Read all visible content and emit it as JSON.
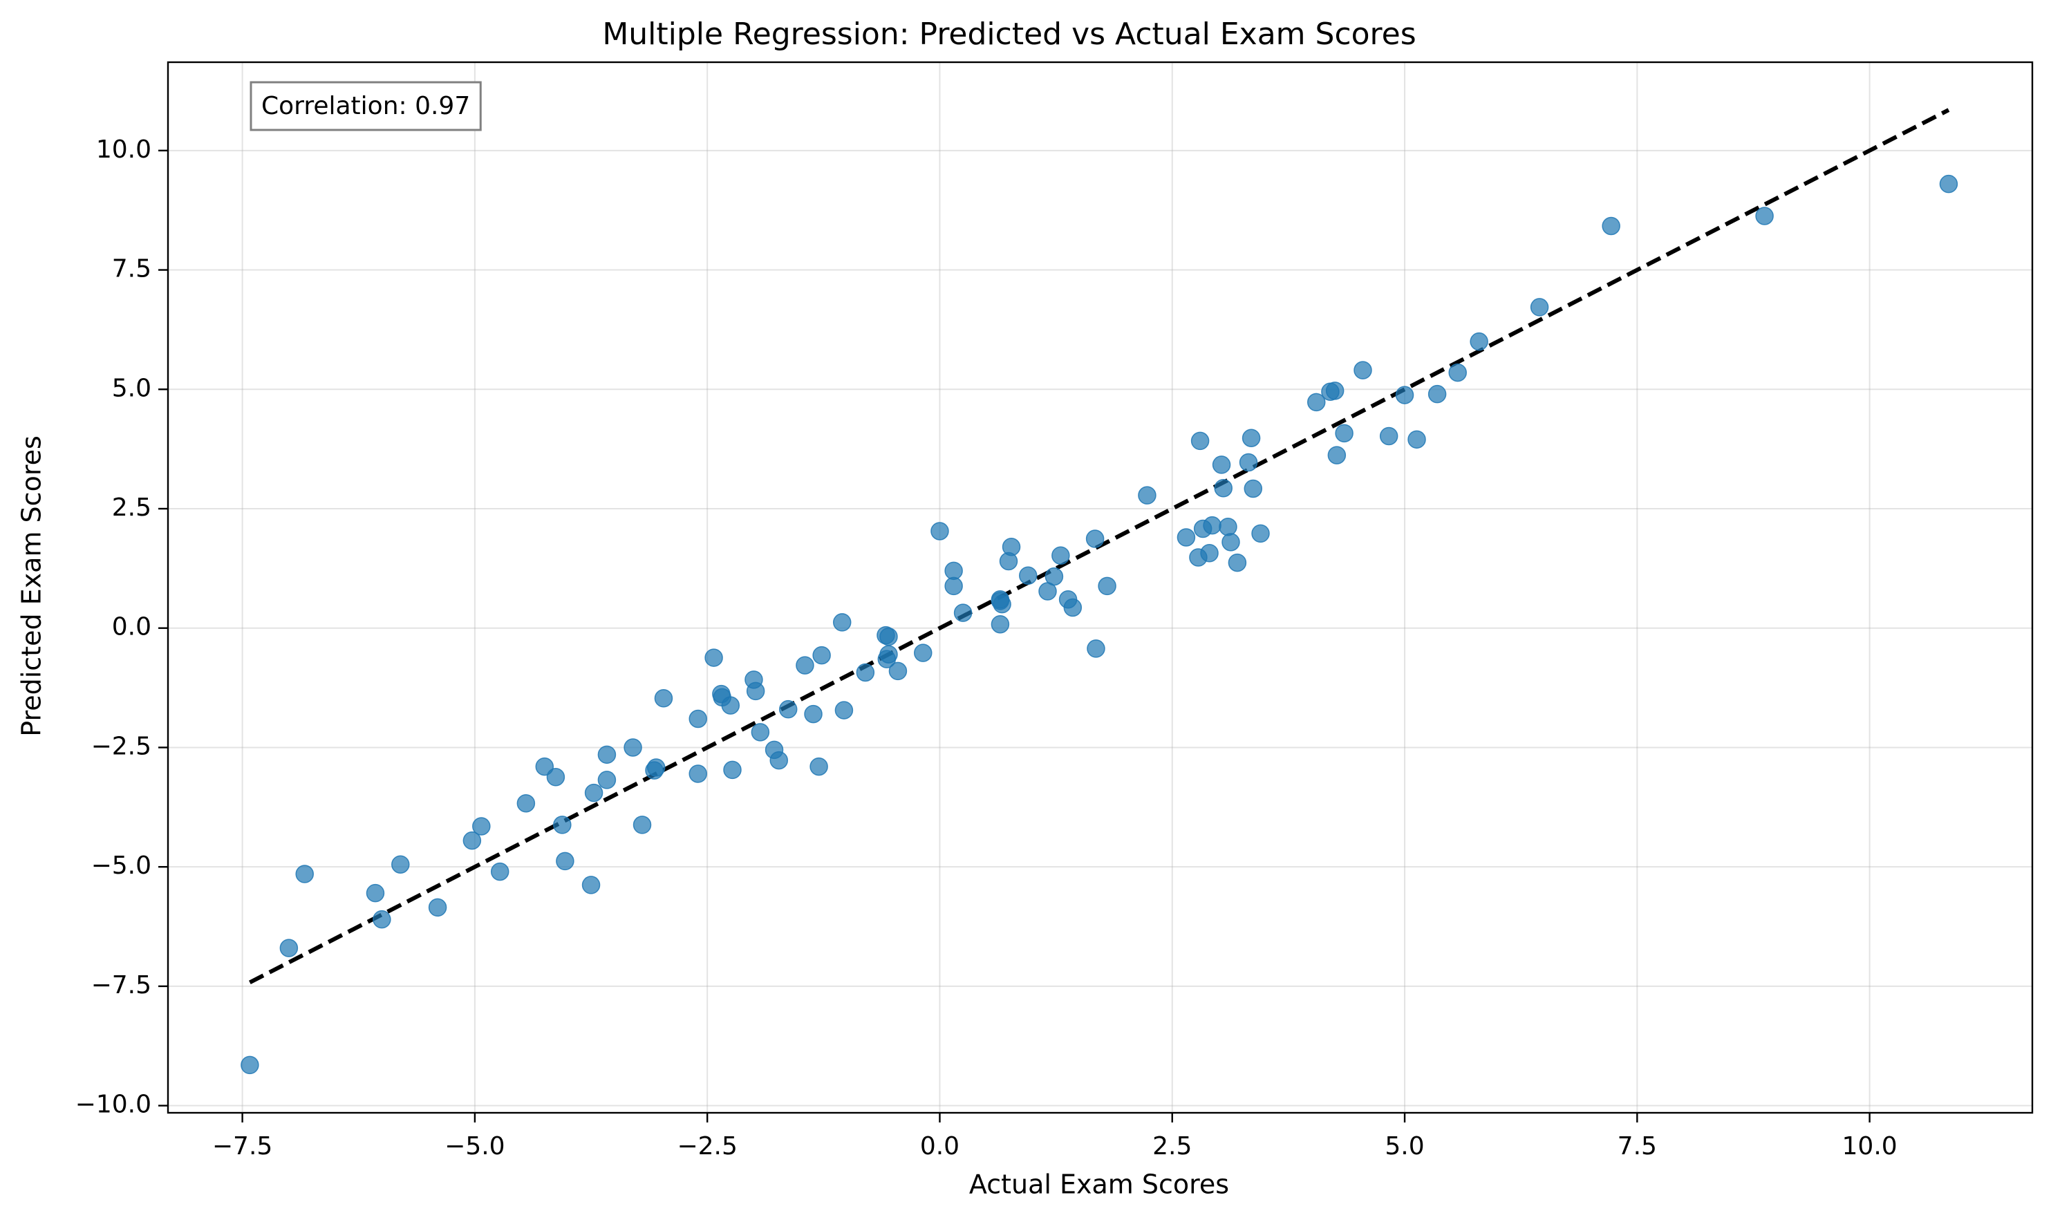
{
  "chart_data": {
    "type": "scatter",
    "title": "Multiple Regression: Predicted vs Actual Exam Scores",
    "xlabel": "Actual Exam Scores",
    "ylabel": "Predicted Exam Scores",
    "xlim": [
      -8.3,
      11.75
    ],
    "ylim": [
      -10.15,
      11.85
    ],
    "xticks": [
      -7.5,
      -5.0,
      -2.5,
      0.0,
      2.5,
      5.0,
      7.5,
      10.0
    ],
    "yticks": [
      -10.0,
      -7.5,
      -5.0,
      -2.5,
      0.0,
      2.5,
      5.0,
      7.5,
      10.0
    ],
    "grid": true,
    "annotation": "Correlation: 0.97",
    "annotation_position": "top-left",
    "point_color": "#1f77b4",
    "line_color": "#000000",
    "reference_line": {
      "style": "dashed",
      "x": [
        -7.42,
        10.85
      ],
      "y": [
        -7.42,
        10.85
      ]
    },
    "points": [
      [
        -7.42,
        -9.15
      ],
      [
        -7.0,
        -6.7
      ],
      [
        -6.83,
        -5.15
      ],
      [
        -6.07,
        -5.55
      ],
      [
        -6.0,
        -6.1
      ],
      [
        -5.8,
        -4.95
      ],
      [
        -5.4,
        -5.85
      ],
      [
        -5.03,
        -4.45
      ],
      [
        -4.93,
        -4.15
      ],
      [
        -4.73,
        -5.1
      ],
      [
        -4.45,
        -3.67
      ],
      [
        -4.25,
        -2.9
      ],
      [
        -4.13,
        -3.12
      ],
      [
        -4.06,
        -4.12
      ],
      [
        -4.03,
        -4.88
      ],
      [
        -3.75,
        -5.38
      ],
      [
        -3.72,
        -3.45
      ],
      [
        -3.58,
        -2.65
      ],
      [
        -3.58,
        -3.18
      ],
      [
        -3.3,
        -2.5
      ],
      [
        -3.2,
        -4.12
      ],
      [
        -3.07,
        -2.98
      ],
      [
        -3.05,
        -2.92
      ],
      [
        -2.97,
        -1.47
      ],
      [
        -2.6,
        -1.9
      ],
      [
        -2.6,
        -3.05
      ],
      [
        -2.43,
        -0.62
      ],
      [
        -2.35,
        -1.38
      ],
      [
        -2.34,
        -1.45
      ],
      [
        -2.25,
        -1.62
      ],
      [
        -2.23,
        -2.97
      ],
      [
        -2.0,
        -1.08
      ],
      [
        -1.98,
        -1.32
      ],
      [
        -1.93,
        -2.18
      ],
      [
        -1.78,
        -2.55
      ],
      [
        -1.73,
        -2.77
      ],
      [
        -1.63,
        -1.7
      ],
      [
        -1.45,
        -0.78
      ],
      [
        -1.36,
        -1.8
      ],
      [
        -1.3,
        -2.9
      ],
      [
        -1.27,
        -0.57
      ],
      [
        -1.05,
        0.12
      ],
      [
        -1.03,
        -1.72
      ],
      [
        -0.8,
        -0.93
      ],
      [
        -0.58,
        -0.15
      ],
      [
        -0.57,
        -0.65
      ],
      [
        -0.55,
        -0.18
      ],
      [
        -0.55,
        -0.55
      ],
      [
        -0.45,
        -0.9
      ],
      [
        -0.18,
        -0.52
      ],
      [
        0.0,
        2.03
      ],
      [
        0.15,
        1.2
      ],
      [
        0.15,
        0.88
      ],
      [
        0.25,
        0.32
      ],
      [
        0.65,
        0.57
      ],
      [
        0.65,
        0.6
      ],
      [
        0.67,
        0.5
      ],
      [
        0.65,
        0.08
      ],
      [
        0.74,
        1.4
      ],
      [
        0.77,
        1.7
      ],
      [
        0.95,
        1.1
      ],
      [
        1.16,
        0.77
      ],
      [
        1.23,
        1.08
      ],
      [
        1.3,
        1.52
      ],
      [
        1.38,
        0.6
      ],
      [
        1.43,
        0.43
      ],
      [
        1.67,
        1.87
      ],
      [
        1.68,
        -0.43
      ],
      [
        1.8,
        0.88
      ],
      [
        2.23,
        2.78
      ],
      [
        2.65,
        1.9
      ],
      [
        2.78,
        1.48
      ],
      [
        2.8,
        3.92
      ],
      [
        2.83,
        2.08
      ],
      [
        2.9,
        1.57
      ],
      [
        2.93,
        2.15
      ],
      [
        3.03,
        3.42
      ],
      [
        3.05,
        2.93
      ],
      [
        3.1,
        2.12
      ],
      [
        3.13,
        1.8
      ],
      [
        3.2,
        1.37
      ],
      [
        3.32,
        3.47
      ],
      [
        3.35,
        3.98
      ],
      [
        3.37,
        2.92
      ],
      [
        3.45,
        1.98
      ],
      [
        4.05,
        4.73
      ],
      [
        4.2,
        4.95
      ],
      [
        4.25,
        4.97
      ],
      [
        4.27,
        3.62
      ],
      [
        4.35,
        4.08
      ],
      [
        4.55,
        5.4
      ],
      [
        4.83,
        4.02
      ],
      [
        5.0,
        4.88
      ],
      [
        5.13,
        3.95
      ],
      [
        5.35,
        4.9
      ],
      [
        5.57,
        5.35
      ],
      [
        5.8,
        6.0
      ],
      [
        6.45,
        6.72
      ],
      [
        7.22,
        8.42
      ],
      [
        8.87,
        8.63
      ],
      [
        10.85,
        9.3
      ]
    ]
  }
}
